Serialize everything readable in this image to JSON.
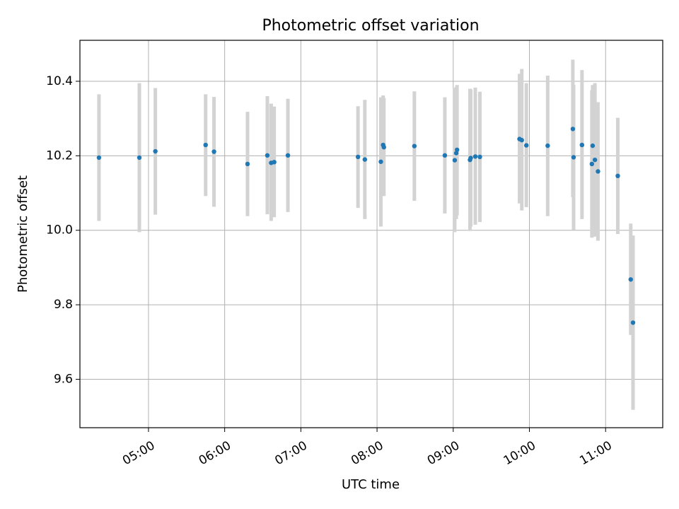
{
  "chart_data": {
    "type": "scatter",
    "title": "Photometric offset variation",
    "xlabel": "UTC time",
    "ylabel": "Photometric offset",
    "grid": true,
    "x_unit": "hours (UTC)",
    "xlim": [
      4.1,
      11.75
    ],
    "ylim": [
      9.47,
      10.51
    ],
    "x_ticks": [
      {
        "value": 5.0,
        "label": "05:00"
      },
      {
        "value": 6.0,
        "label": "06:00"
      },
      {
        "value": 7.0,
        "label": "07:00"
      },
      {
        "value": 8.0,
        "label": "08:00"
      },
      {
        "value": 9.0,
        "label": "09:00"
      },
      {
        "value": 10.0,
        "label": "10:00"
      },
      {
        "value": 11.0,
        "label": "11:00"
      }
    ],
    "y_ticks": [
      {
        "value": 9.6,
        "label": "9.6"
      },
      {
        "value": 9.8,
        "label": "9.8"
      },
      {
        "value": 10.0,
        "label": "10.0"
      },
      {
        "value": 10.2,
        "label": "10.2"
      },
      {
        "value": 10.4,
        "label": "10.4"
      }
    ],
    "colors": {
      "points": "#1f77b4",
      "errorbars": "#d3d3d3",
      "grid": "#b0b0b0"
    },
    "points": [
      {
        "x": 4.35,
        "y": 10.195,
        "ylow": 10.025,
        "yhigh": 10.365
      },
      {
        "x": 4.88,
        "y": 10.195,
        "ylow": 9.995,
        "yhigh": 10.395
      },
      {
        "x": 5.09,
        "y": 10.212,
        "ylow": 10.042,
        "yhigh": 10.382
      },
      {
        "x": 5.75,
        "y": 10.229,
        "ylow": 10.092,
        "yhigh": 10.365
      },
      {
        "x": 5.86,
        "y": 10.211,
        "ylow": 10.063,
        "yhigh": 10.358
      },
      {
        "x": 6.3,
        "y": 10.178,
        "ylow": 10.038,
        "yhigh": 10.318
      },
      {
        "x": 6.56,
        "y": 10.201,
        "ylow": 10.043,
        "yhigh": 10.36
      },
      {
        "x": 6.61,
        "y": 10.181,
        "ylow": 10.025,
        "yhigh": 10.34
      },
      {
        "x": 6.65,
        "y": 10.183,
        "ylow": 10.035,
        "yhigh": 10.332
      },
      {
        "x": 6.83,
        "y": 10.201,
        "ylow": 10.049,
        "yhigh": 10.353
      },
      {
        "x": 7.75,
        "y": 10.197,
        "ylow": 10.06,
        "yhigh": 10.333
      },
      {
        "x": 7.84,
        "y": 10.19,
        "ylow": 10.03,
        "yhigh": 10.35
      },
      {
        "x": 8.05,
        "y": 10.184,
        "ylow": 10.01,
        "yhigh": 10.357
      },
      {
        "x": 8.08,
        "y": 10.229,
        "ylow": 10.092,
        "yhigh": 10.362
      },
      {
        "x": 8.09,
        "y": 10.223,
        "ylow": 10.092,
        "yhigh": 10.355
      },
      {
        "x": 8.49,
        "y": 10.226,
        "ylow": 10.079,
        "yhigh": 10.373
      },
      {
        "x": 8.89,
        "y": 10.201,
        "ylow": 10.045,
        "yhigh": 10.357
      },
      {
        "x": 9.02,
        "y": 10.188,
        "ylow": 9.995,
        "yhigh": 10.382
      },
      {
        "x": 9.04,
        "y": 10.207,
        "ylow": 10.03,
        "yhigh": 10.385
      },
      {
        "x": 9.05,
        "y": 10.216,
        "ylow": 10.04,
        "yhigh": 10.39
      },
      {
        "x": 9.22,
        "y": 10.189,
        "ylow": 9.998,
        "yhigh": 10.38
      },
      {
        "x": 9.23,
        "y": 10.194,
        "ylow": 10.01,
        "yhigh": 10.378
      },
      {
        "x": 9.29,
        "y": 10.198,
        "ylow": 10.015,
        "yhigh": 10.383
      },
      {
        "x": 9.35,
        "y": 10.197,
        "ylow": 10.022,
        "yhigh": 10.372
      },
      {
        "x": 9.87,
        "y": 10.245,
        "ylow": 10.072,
        "yhigh": 10.42
      },
      {
        "x": 9.9,
        "y": 10.242,
        "ylow": 10.053,
        "yhigh": 10.433
      },
      {
        "x": 9.96,
        "y": 10.228,
        "ylow": 10.062,
        "yhigh": 10.395
      },
      {
        "x": 10.24,
        "y": 10.227,
        "ylow": 10.038,
        "yhigh": 10.415
      },
      {
        "x": 10.57,
        "y": 10.272,
        "ylow": 10.089,
        "yhigh": 10.458
      },
      {
        "x": 10.58,
        "y": 10.196,
        "ylow": 10.001,
        "yhigh": 10.391
      },
      {
        "x": 10.69,
        "y": 10.229,
        "ylow": 10.03,
        "yhigh": 10.43
      },
      {
        "x": 10.82,
        "y": 10.178,
        "ylow": 9.98,
        "yhigh": 10.376
      },
      {
        "x": 10.83,
        "y": 10.227,
        "ylow": 10.055,
        "yhigh": 10.39
      },
      {
        "x": 10.86,
        "y": 10.189,
        "ylow": 9.983,
        "yhigh": 10.395
      },
      {
        "x": 10.9,
        "y": 10.158,
        "ylow": 9.972,
        "yhigh": 10.344
      },
      {
        "x": 11.16,
        "y": 10.146,
        "ylow": 9.99,
        "yhigh": 10.302
      },
      {
        "x": 11.33,
        "y": 9.868,
        "ylow": 9.719,
        "yhigh": 10.018
      },
      {
        "x": 11.36,
        "y": 9.752,
        "ylow": 9.518,
        "yhigh": 9.986
      }
    ]
  }
}
